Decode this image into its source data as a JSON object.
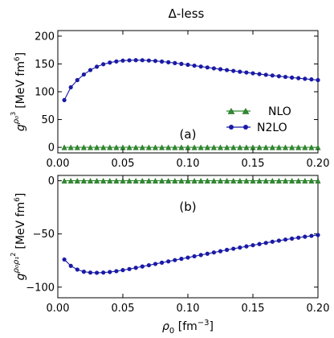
{
  "chart_data": {
    "type": "line",
    "title": "Δ-less",
    "xlabel": "ρ₀ [fm⁻³]",
    "xlim": [
      0,
      0.2
    ],
    "xticks": [
      "0.00",
      "0.05",
      "0.10",
      "0.15",
      "0.20"
    ],
    "panels": [
      {
        "tag": "(a)",
        "ylabel": "g^{ρ0^3} [MeV fm^6]",
        "ylim": [
          -10,
          210
        ],
        "yticks": [
          "0",
          "50",
          "100",
          "150",
          "200"
        ],
        "legend": "right",
        "series": [
          {
            "name": "NLO",
            "color": "#2e8b2e",
            "marker": "triangle",
            "x": [
              0.005,
              0.01,
              0.015,
              0.02,
              0.025,
              0.03,
              0.035,
              0.04,
              0.045,
              0.05,
              0.055,
              0.06,
              0.065,
              0.07,
              0.075,
              0.08,
              0.085,
              0.09,
              0.095,
              0.1,
              0.105,
              0.11,
              0.115,
              0.12,
              0.125,
              0.13,
              0.135,
              0.14,
              0.145,
              0.15,
              0.155,
              0.16,
              0.165,
              0.17,
              0.175,
              0.18,
              0.185,
              0.19,
              0.195,
              0.2
            ],
            "y": [
              0,
              0,
              0,
              0,
              0,
              0,
              0,
              0,
              0,
              0,
              0,
              0,
              0,
              0,
              0,
              0,
              0,
              0,
              0,
              0,
              0,
              0,
              0,
              0,
              0,
              0,
              0,
              0,
              0,
              0,
              0,
              0,
              0,
              0,
              0,
              0,
              0,
              0,
              0,
              0
            ]
          },
          {
            "name": "N2LO",
            "color": "#1a1aa6",
            "marker": "circle",
            "x": [
              0.005,
              0.01,
              0.015,
              0.02,
              0.025,
              0.03,
              0.035,
              0.04,
              0.045,
              0.05,
              0.055,
              0.06,
              0.065,
              0.07,
              0.075,
              0.08,
              0.085,
              0.09,
              0.095,
              0.1,
              0.105,
              0.11,
              0.115,
              0.12,
              0.125,
              0.13,
              0.135,
              0.14,
              0.145,
              0.15,
              0.155,
              0.16,
              0.165,
              0.17,
              0.175,
              0.18,
              0.185,
              0.19,
              0.195,
              0.2
            ],
            "y": [
              85,
              108,
              121,
              131,
              139,
              145,
              149.5,
              152.5,
              154.5,
              156,
              156.5,
              156.8,
              156.7,
              156.2,
              155.4,
              154.3,
              153,
              151.6,
              150.1,
              148.5,
              146.9,
              145.3,
              143.7,
              142.1,
              140.5,
              139,
              137.5,
              136,
              134.6,
              133.2,
              131.8,
              130.5,
              129.2,
              127.9,
              126.7,
              125.5,
              124.4,
              123.3,
              122.2,
              121
            ]
          }
        ]
      },
      {
        "tag": "(b)",
        "ylabel": "g^{ρ0 ρ1^2} [MeV fm^6]",
        "ylim": [
          -110,
          5
        ],
        "yticks": [
          "0",
          "−50",
          "−100"
        ],
        "series": [
          {
            "name": "NLO",
            "color": "#2e8b2e",
            "marker": "triangle",
            "x": [
              0.005,
              0.01,
              0.015,
              0.02,
              0.025,
              0.03,
              0.035,
              0.04,
              0.045,
              0.05,
              0.055,
              0.06,
              0.065,
              0.07,
              0.075,
              0.08,
              0.085,
              0.09,
              0.095,
              0.1,
              0.105,
              0.11,
              0.115,
              0.12,
              0.125,
              0.13,
              0.135,
              0.14,
              0.145,
              0.15,
              0.155,
              0.16,
              0.165,
              0.17,
              0.175,
              0.18,
              0.185,
              0.19,
              0.195,
              0.2
            ],
            "y": [
              0,
              0,
              0,
              0,
              0,
              0,
              0,
              0,
              0,
              0,
              0,
              0,
              0,
              0,
              0,
              0,
              0,
              0,
              0,
              0,
              0,
              0,
              0,
              0,
              0,
              0,
              0,
              0,
              0,
              0,
              0,
              0,
              0,
              0,
              0,
              0,
              0,
              0,
              0,
              0
            ]
          },
          {
            "name": "N2LO",
            "color": "#1a1aa6",
            "marker": "circle",
            "x": [
              0.005,
              0.01,
              0.015,
              0.02,
              0.025,
              0.03,
              0.035,
              0.04,
              0.045,
              0.05,
              0.055,
              0.06,
              0.065,
              0.07,
              0.075,
              0.08,
              0.085,
              0.09,
              0.095,
              0.1,
              0.105,
              0.11,
              0.115,
              0.12,
              0.125,
              0.13,
              0.135,
              0.14,
              0.145,
              0.15,
              0.155,
              0.16,
              0.165,
              0.17,
              0.175,
              0.18,
              0.185,
              0.19,
              0.195,
              0.2
            ],
            "y": [
              -74,
              -80,
              -83.5,
              -85.5,
              -86.3,
              -86.5,
              -86.3,
              -85.8,
              -85,
              -84,
              -83,
              -81.8,
              -80.6,
              -79.4,
              -78.2,
              -77,
              -75.8,
              -74.6,
              -73.4,
              -72.2,
              -71,
              -69.8,
              -68.6,
              -67.4,
              -66.2,
              -65,
              -63.9,
              -62.8,
              -61.7,
              -60.6,
              -59.5,
              -58.4,
              -57.3,
              -56.3,
              -55.3,
              -54.4,
              -53.5,
              -52.6,
              -51.8,
              -51
            ]
          }
        ]
      }
    ]
  }
}
